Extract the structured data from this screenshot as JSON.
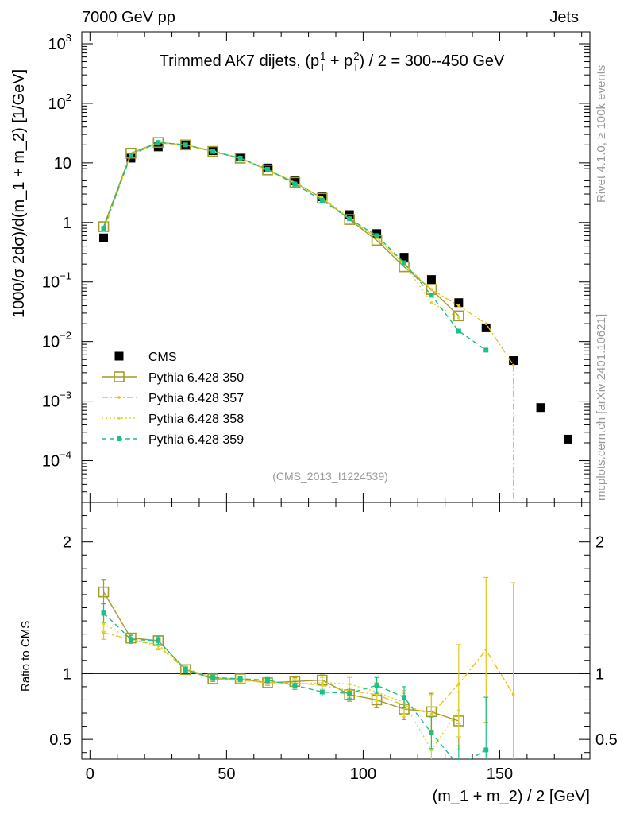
{
  "header": {
    "left": "7000 GeV pp",
    "right": "Jets",
    "side_rivet": "Rivet 4.1.0, ≥ 100k events",
    "side_mcplots": "mcplots.cern.ch [arXiv:2401.10621]",
    "analysis_id": "(CMS_2013_I1224539)"
  },
  "colors": {
    "cms": "#000000",
    "p350": "#a19a2c",
    "p357": "#e6c619",
    "p358": "#dcd82a",
    "p359": "#19c08a"
  },
  "chart_data": {
    "type": "scatter",
    "title": "Trimmed AK7 dijets, (p_T^1 + p_T^2) / 2 = 300--450 GeV",
    "title_prefix": "Trimmed AK7 dijets, (p",
    "title_mid": " + p",
    "title_suffix": ") / 2 = 300--450 GeV",
    "xlabel": "(m_1 + m_2) / 2 [GeV]",
    "ylabel_main": "1000/σ  2dσ)/d(m_1 + m_2) [1/GeV]",
    "ylabel_ratio": "Ratio to CMS",
    "xlim": [
      -3,
      183
    ],
    "ylim_main_log10": [
      -4.7,
      3.2
    ],
    "ylim_ratio": [
      0.35,
      2.3
    ],
    "x_ticks": [
      0,
      50,
      100,
      150
    ],
    "x_tick_labels": [
      "0",
      "50",
      "100",
      "150"
    ],
    "y_ticks_main": [
      {
        "exp": 3,
        "label": "10",
        "sup": "3"
      },
      {
        "exp": 2,
        "label": "10",
        "sup": "2"
      },
      {
        "exp": 1,
        "label": "10",
        "sup": ""
      },
      {
        "exp": 0,
        "label": "1",
        "sup": ""
      },
      {
        "exp": -1,
        "label": "10",
        "sup": "−1"
      },
      {
        "exp": -2,
        "label": "10",
        "sup": "−2"
      },
      {
        "exp": -3,
        "label": "10",
        "sup": "−3"
      },
      {
        "exp": -4,
        "label": "10",
        "sup": "−4"
      }
    ],
    "y_ticks_ratio": [
      {
        "value": 2,
        "label": "2"
      },
      {
        "value": 1,
        "label": "1"
      },
      {
        "value": 0.5,
        "label": "0.5"
      }
    ],
    "series": [
      {
        "name": "CMS",
        "key": "cms",
        "style": "data",
        "x": [
          5,
          15,
          25,
          35,
          45,
          55,
          65,
          75,
          85,
          95,
          105,
          115,
          125,
          135,
          145,
          155,
          165,
          175
        ],
        "y": [
          0.55,
          12,
          18.5,
          19.5,
          16,
          12.5,
          8.2,
          5,
          2.7,
          1.35,
          0.65,
          0.26,
          0.11,
          0.045,
          0.017,
          0.0048,
          0.00078,
          0.00023
        ]
      },
      {
        "name": "Pythia 6.428 350",
        "key": "p350",
        "style": "solid",
        "marker": "open-square",
        "x": [
          5,
          15,
          25,
          35,
          45,
          55,
          65,
          75,
          85,
          95,
          105,
          115,
          125,
          135
        ],
        "y": [
          0.85,
          14.5,
          22,
          20,
          15.5,
          12,
          7.6,
          4.7,
          2.55,
          1.12,
          0.5,
          0.18,
          0.075,
          0.027
        ],
        "ratio": [
          1.62,
          1.27,
          1.25,
          1.03,
          0.96,
          0.96,
          0.93,
          0.94,
          0.95,
          0.84,
          0.8,
          0.73,
          0.71,
          0.64
        ],
        "ratio_err": [
          0.09,
          0.03,
          0.03,
          0.02,
          0.02,
          0.02,
          0.02,
          0.03,
          0.04,
          0.05,
          0.06,
          0.08,
          0.14,
          0.22
        ]
      },
      {
        "name": "Pythia 6.428 357",
        "key": "p357",
        "style": "dashdot",
        "marker": "dot",
        "x": [
          5,
          15,
          25,
          35,
          45,
          55,
          65,
          75,
          85,
          95,
          105,
          115,
          125,
          135,
          145,
          155
        ],
        "y": [
          0.72,
          14,
          21.5,
          20,
          15.5,
          12,
          7.5,
          4.5,
          2.5,
          1.15,
          0.55,
          0.2,
          0.075,
          0.04,
          0.02,
          0.004
        ],
        "ratio": [
          1.31,
          1.26,
          1.21,
          1.03,
          0.97,
          0.95,
          0.93,
          0.93,
          0.91,
          0.87,
          0.84,
          0.76,
          0.69,
          0.92,
          1.18,
          0.84
        ],
        "ratio_err": [
          0.05,
          0.03,
          0.03,
          0.02,
          0.02,
          0.02,
          0.02,
          0.03,
          0.04,
          0.05,
          0.07,
          0.09,
          0.15,
          0.3,
          0.55,
          0.85
        ]
      },
      {
        "name": "Pythia 6.428 358",
        "key": "p358",
        "style": "dotted",
        "marker": "dot",
        "x": [
          5,
          15,
          25,
          35,
          45,
          55,
          65,
          75,
          85,
          95,
          105,
          115,
          125,
          135
        ],
        "y": [
          0.76,
          14,
          22,
          20,
          16,
          12,
          7.7,
          4.6,
          2.6,
          1.2,
          0.55,
          0.2,
          0.045,
          0.025
        ],
        "ratio": [
          1.38,
          1.26,
          1.22,
          1.04,
          0.97,
          0.96,
          0.94,
          0.92,
          0.93,
          0.92,
          0.86,
          0.78,
          0.42,
          0.72
        ],
        "ratio_err": [
          0.06,
          0.03,
          0.03,
          0.02,
          0.02,
          0.02,
          0.02,
          0.03,
          0.04,
          0.05,
          0.07,
          0.09,
          0.12,
          0.2
        ]
      },
      {
        "name": "Pythia 6.428 359",
        "key": "p359",
        "style": "dashed",
        "marker": "filled-square",
        "x": [
          5,
          15,
          25,
          35,
          45,
          55,
          65,
          75,
          85,
          95,
          105,
          115,
          125,
          135,
          145
        ],
        "y": [
          0.8,
          13.5,
          22,
          20,
          15.5,
          12,
          7.8,
          4.4,
          2.35,
          1.15,
          0.6,
          0.21,
          0.06,
          0.015,
          0.0072
        ],
        "ratio": [
          1.46,
          1.26,
          1.25,
          1.03,
          0.97,
          0.96,
          0.95,
          0.91,
          0.86,
          0.85,
          0.91,
          0.82,
          0.55,
          0.3,
          0.42
        ],
        "ratio_err": [
          0.07,
          0.03,
          0.03,
          0.02,
          0.02,
          0.02,
          0.02,
          0.03,
          0.03,
          0.04,
          0.06,
          0.08,
          0.12,
          0.15,
          0.4
        ]
      }
    ]
  }
}
